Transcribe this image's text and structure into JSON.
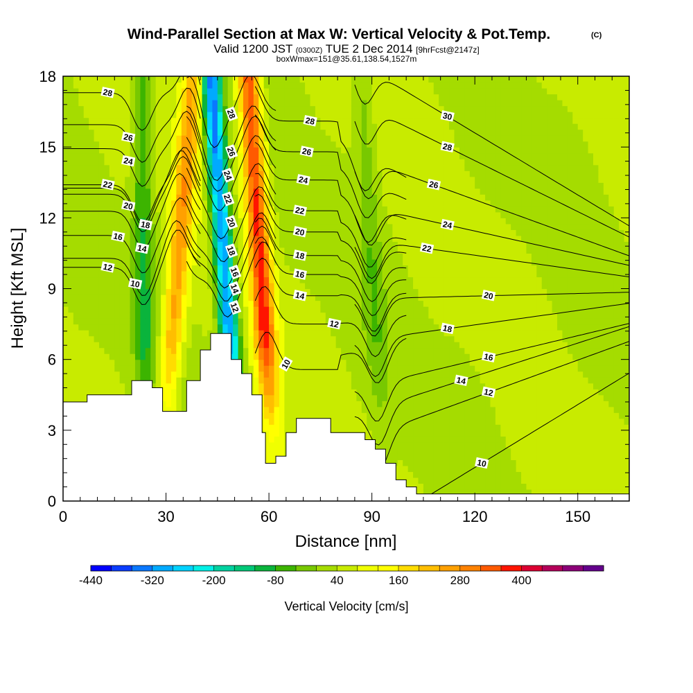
{
  "chart_data": {
    "type": "heatmap",
    "title": "Wind-Parallel Section at Max W: Vertical Velocity & Pot.Temp.",
    "title_mark": "(C)",
    "subtitle_parts": [
      "Valid 1200 JST",
      "(0300Z)",
      "TUE 2 Dec 2014",
      "[9hrFcst@2147z]"
    ],
    "subtitle2": "boxWmax=151@35.61,138.54,1527m",
    "xlabel": "Distance [nm]",
    "ylabel": "Height [Kft MSL]",
    "xlim": [
      0,
      165
    ],
    "ylim": [
      0,
      18
    ],
    "x_ticks": [
      0,
      30,
      60,
      90,
      120,
      150
    ],
    "y_ticks": [
      0,
      3,
      6,
      9,
      12,
      15,
      18
    ],
    "colorbar": {
      "label": "Vertical Velocity [cm/s]",
      "min": -440,
      "max": 520,
      "step": 40,
      "tick_labels": [
        -440,
        -320,
        -200,
        -80,
        40,
        160,
        280,
        400
      ],
      "colors": [
        "#0000ff",
        "#0a3cff",
        "#0a78ff",
        "#00aaff",
        "#00d2ff",
        "#00f0e6",
        "#00d2a0",
        "#00c878",
        "#0ab43c",
        "#3cb400",
        "#78c800",
        "#a5dc00",
        "#c8eb00",
        "#f0ff00",
        "#ffff00",
        "#ffdc00",
        "#ffbe00",
        "#ffa000",
        "#ff8200",
        "#ff5a00",
        "#ff1400",
        "#dc0032",
        "#b4005a",
        "#8c0078",
        "#64008c"
      ]
    },
    "velocity_features": [
      {
        "kind": "updraft",
        "x_bottom": 28,
        "x_top": 38,
        "w": 220
      },
      {
        "kind": "downdraft",
        "x_bottom": 52,
        "x_top": 43,
        "w": -380
      },
      {
        "kind": "updraft",
        "x_bottom": 62,
        "x_top": 54,
        "w": 330
      },
      {
        "kind": "downdraft",
        "x_bottom": 24,
        "x_top": 23,
        "w": -120
      },
      {
        "kind": "downdraft",
        "x_bottom": 94,
        "x_top": 87,
        "w": -60
      }
    ],
    "terrain_height": [
      [
        0,
        4.2
      ],
      [
        7,
        4.2
      ],
      [
        7,
        4.5
      ],
      [
        20,
        4.5
      ],
      [
        20,
        5.1
      ],
      [
        26,
        5.1
      ],
      [
        26,
        4.8
      ],
      [
        29,
        4.8
      ],
      [
        29,
        3.8
      ],
      [
        36,
        3.8
      ],
      [
        36,
        5.1
      ],
      [
        40,
        5.1
      ],
      [
        40,
        6.4
      ],
      [
        43,
        6.4
      ],
      [
        43,
        7.1
      ],
      [
        49,
        7.1
      ],
      [
        49,
        6.0
      ],
      [
        52,
        6.0
      ],
      [
        52,
        5.4
      ],
      [
        55,
        5.4
      ],
      [
        55,
        4.5
      ],
      [
        58,
        4.5
      ],
      [
        58,
        2.9
      ],
      [
        59,
        2.9
      ],
      [
        59,
        1.6
      ],
      [
        62,
        1.6
      ],
      [
        62,
        1.9
      ],
      [
        65,
        1.9
      ],
      [
        65,
        2.9
      ],
      [
        68,
        2.9
      ],
      [
        68,
        3.5
      ],
      [
        78,
        3.5
      ],
      [
        78,
        2.9
      ],
      [
        88,
        2.9
      ],
      [
        88,
        2.6
      ],
      [
        91,
        2.6
      ],
      [
        91,
        2.2
      ],
      [
        94,
        2.2
      ],
      [
        94,
        1.6
      ],
      [
        97,
        1.6
      ],
      [
        97,
        0.9
      ],
      [
        100,
        0.9
      ],
      [
        100,
        0.6
      ],
      [
        103,
        0.6
      ],
      [
        103,
        0.3
      ],
      [
        165,
        0.3
      ]
    ],
    "theta_contours": [
      {
        "label": "10",
        "label_pos": [
          21,
          9.2
        ],
        "theta": 10
      },
      {
        "label": "12",
        "label_pos": [
          13,
          9.9
        ],
        "theta": 12
      },
      {
        "label": "14",
        "label_pos": [
          23,
          10.7
        ],
        "theta": 14
      },
      {
        "label": "16",
        "label_pos": [
          16,
          11.2
        ],
        "theta": 16
      },
      {
        "label": "18",
        "label_pos": [
          24,
          11.7
        ],
        "theta": 18
      },
      {
        "label": "20",
        "label_pos": [
          19,
          12.5
        ],
        "theta": 20
      },
      {
        "label": "22",
        "label_pos": [
          13,
          13.4
        ],
        "theta": 22
      },
      {
        "label": "24",
        "label_pos": [
          19,
          14.4
        ],
        "theta": 24
      },
      {
        "label": "26",
        "label_pos": [
          19,
          15.4
        ],
        "theta": 26
      },
      {
        "label": "28",
        "label_pos": [
          13,
          17.3
        ],
        "theta": 28
      },
      {
        "label": "12",
        "label_pos": [
          50,
          8.2
        ],
        "theta": 12
      },
      {
        "label": "14",
        "label_pos": [
          50,
          9.0
        ],
        "theta": 14
      },
      {
        "label": "16",
        "label_pos": [
          50,
          9.7
        ],
        "theta": 16
      },
      {
        "label": "18",
        "label_pos": [
          49,
          10.6
        ],
        "theta": 18
      },
      {
        "label": "20",
        "label_pos": [
          49,
          11.8
        ],
        "theta": 20
      },
      {
        "label": "22",
        "label_pos": [
          48,
          12.8
        ],
        "theta": 22
      },
      {
        "label": "24",
        "label_pos": [
          48,
          13.8
        ],
        "theta": 24
      },
      {
        "label": "26",
        "label_pos": [
          49,
          14.8
        ],
        "theta": 26
      },
      {
        "label": "28",
        "label_pos": [
          49,
          16.4
        ],
        "theta": 28
      },
      {
        "label": "10",
        "label_pos": [
          65,
          5.8
        ],
        "theta": 10
      },
      {
        "label": "14",
        "label_pos": [
          69,
          8.7
        ],
        "theta": 14
      },
      {
        "label": "16",
        "label_pos": [
          69,
          9.6
        ],
        "theta": 16
      },
      {
        "label": "18",
        "label_pos": [
          69,
          10.4
        ],
        "theta": 18
      },
      {
        "label": "20",
        "label_pos": [
          69,
          11.4
        ],
        "theta": 20
      },
      {
        "label": "22",
        "label_pos": [
          69,
          12.3
        ],
        "theta": 22
      },
      {
        "label": "24",
        "label_pos": [
          70,
          13.6
        ],
        "theta": 24
      },
      {
        "label": "26",
        "label_pos": [
          71,
          14.8
        ],
        "theta": 26
      },
      {
        "label": "28",
        "label_pos": [
          72,
          16.1
        ],
        "theta": 28
      },
      {
        "label": "12",
        "label_pos": [
          79,
          7.5
        ],
        "theta": 12
      },
      {
        "label": "30",
        "label_pos": [
          112,
          16.3
        ],
        "theta": 30
      },
      {
        "label": "28",
        "label_pos": [
          112,
          15.0
        ],
        "theta": 28
      },
      {
        "label": "26",
        "label_pos": [
          108,
          13.4
        ],
        "theta": 26
      },
      {
        "label": "24",
        "label_pos": [
          112,
          11.7
        ],
        "theta": 24
      },
      {
        "label": "22",
        "label_pos": [
          106,
          10.7
        ],
        "theta": 22
      },
      {
        "label": "20",
        "label_pos": [
          124,
          8.7
        ],
        "theta": 20
      },
      {
        "label": "18",
        "label_pos": [
          112,
          7.3
        ],
        "theta": 18
      },
      {
        "label": "16",
        "label_pos": [
          124,
          6.1
        ],
        "theta": 16
      },
      {
        "label": "14",
        "label_pos": [
          116,
          5.1
        ],
        "theta": 14
      },
      {
        "label": "12",
        "label_pos": [
          124,
          4.6
        ],
        "theta": 12
      },
      {
        "label": "10",
        "label_pos": [
          122,
          1.6
        ],
        "theta": 10
      }
    ]
  }
}
